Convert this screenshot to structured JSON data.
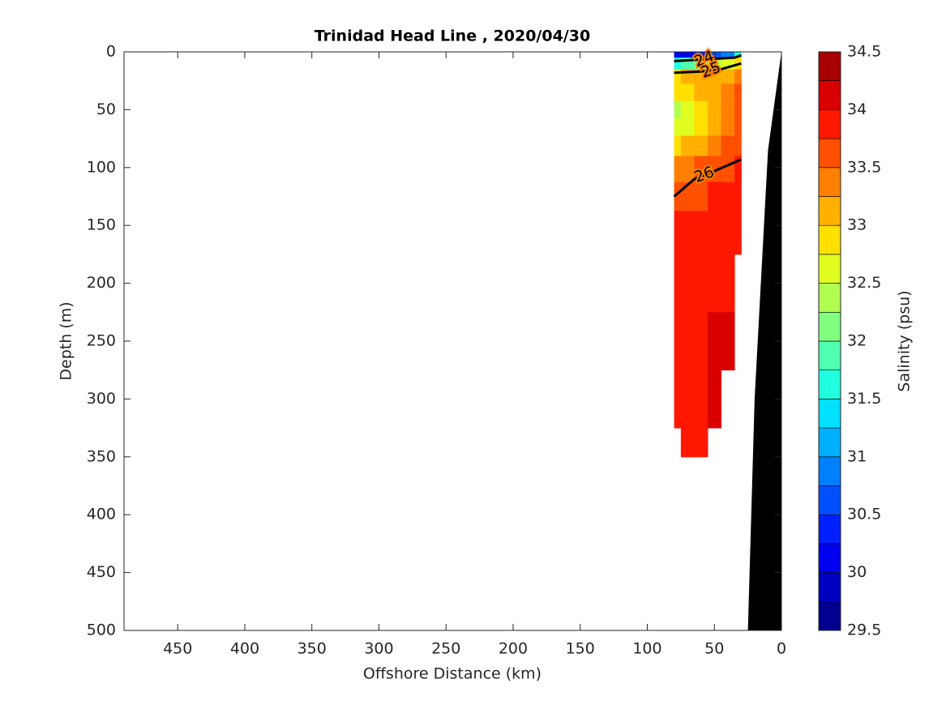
{
  "chart_data": {
    "type": "section",
    "title": "Trinidad Head Line , 2020/04/30",
    "xlabel": "Offshore Distance (km)",
    "ylabel": "Depth (m)",
    "colorbar_label": "Salinity (psu)",
    "xlim": [
      490,
      0
    ],
    "ylim": [
      0,
      500
    ],
    "y_reversed": true,
    "xticks": [
      450,
      400,
      350,
      300,
      250,
      200,
      150,
      100,
      50,
      0
    ],
    "yticks": [
      0,
      50,
      100,
      150,
      200,
      250,
      300,
      350,
      400,
      450,
      500
    ],
    "clim": [
      29.5,
      34.5
    ],
    "cticks": [
      29.5,
      30,
      30.5,
      31,
      31.5,
      32,
      32.5,
      33,
      33.5,
      34,
      34.5
    ],
    "colormap": [
      "#000090",
      "#0000c0",
      "#0000f0",
      "#0020ff",
      "#0050ff",
      "#0080ff",
      "#00b0ff",
      "#00e0ff",
      "#20ffe0",
      "#50ffb0",
      "#80ff80",
      "#b0ff50",
      "#e0ff20",
      "#ffe000",
      "#ffb000",
      "#ff8000",
      "#ff5000",
      "#ff1800",
      "#d80000",
      "#a80000"
    ],
    "stations": [
      80,
      70,
      60,
      50,
      40,
      30
    ],
    "depths": [
      0,
      10,
      20,
      35,
      50,
      65,
      80,
      100,
      125,
      150,
      200,
      250,
      300,
      350
    ],
    "salinity": [
      [
        30.0,
        30.2,
        30.4,
        30.6,
        30.8,
        31.5
      ],
      [
        31.5,
        31.8,
        32.0,
        32.3,
        32.5,
        32.8
      ],
      [
        32.9,
        33.0,
        33.0,
        33.1,
        33.2,
        33.4
      ],
      [
        32.8,
        32.9,
        33.0,
        33.1,
        33.3,
        33.5
      ],
      [
        32.4,
        32.6,
        32.8,
        33.0,
        33.3,
        33.5
      ],
      [
        32.5,
        32.7,
        32.9,
        33.1,
        33.4,
        33.6
      ],
      [
        32.9,
        33.0,
        33.1,
        33.3,
        33.5,
        33.7
      ],
      [
        33.3,
        33.4,
        33.5,
        33.6,
        33.7,
        33.8
      ],
      [
        33.6,
        33.7,
        33.7,
        33.8,
        33.8,
        33.9
      ],
      [
        33.8,
        33.9,
        33.9,
        33.9,
        33.9,
        33.9
      ],
      [
        33.9,
        33.9,
        33.9,
        33.95,
        33.95,
        null
      ],
      [
        33.95,
        33.95,
        33.95,
        34.0,
        34.05,
        null
      ],
      [
        33.95,
        33.95,
        33.95,
        34.0,
        null,
        null
      ],
      [
        null,
        33.95,
        33.95,
        null,
        null,
        null
      ]
    ],
    "density_contours": [
      {
        "label": 24,
        "x": [
          80,
          65,
          50,
          35,
          30
        ],
        "depth": [
          8,
          7,
          6,
          5,
          3
        ]
      },
      {
        "label": 25,
        "x": [
          80,
          60,
          45,
          30
        ],
        "depth": [
          18,
          17,
          15,
          10
        ]
      },
      {
        "label": 26,
        "x": [
          80,
          65,
          50,
          30
        ],
        "depth": [
          125,
          110,
          103,
          93
        ]
      }
    ],
    "bottom": {
      "color": "#000000",
      "x": [
        0,
        10,
        20,
        25
      ],
      "depth": [
        0,
        85,
        300,
        500
      ]
    }
  }
}
